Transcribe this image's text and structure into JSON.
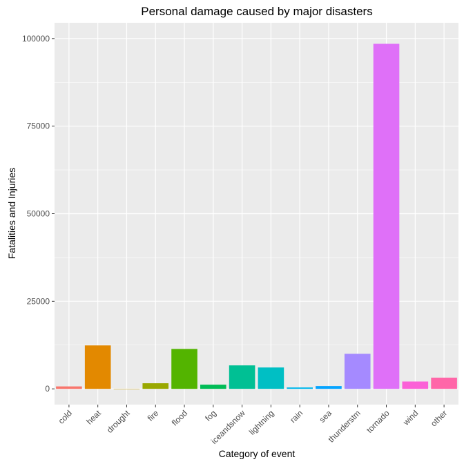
{
  "chart_data": {
    "type": "bar",
    "title": "Personal damage caused by major disasters",
    "xlabel": "Category of event",
    "ylabel": "Fatalities and Injuries",
    "categories": [
      "cold",
      "heat",
      "drought",
      "fire",
      "flood",
      "fog",
      "iceandsnow",
      "lightning",
      "rain",
      "sea",
      "thunderstm",
      "tornado",
      "wind",
      "other"
    ],
    "values": [
      700,
      12400,
      30,
      1600,
      11400,
      1200,
      6700,
      6100,
      400,
      800,
      10000,
      98500,
      2100,
      3200
    ],
    "colors": [
      "#F8766D",
      "#E38900",
      "#C49A00",
      "#99A800",
      "#53B400",
      "#00BC56",
      "#00C094",
      "#00BFC4",
      "#00B6EB",
      "#06A4FF",
      "#A58AFF",
      "#DF70F8",
      "#FB61D7",
      "#FF66A8"
    ],
    "ylim": [
      -4500,
      104500
    ],
    "yticks": [
      0,
      25000,
      50000,
      75000,
      100000
    ],
    "ytick_labels": [
      "0",
      "25000",
      "50000",
      "75000",
      "100000"
    ],
    "grid": true,
    "legend": "none",
    "panel_background": "#EBEBEB",
    "grid_color": "#FFFFFF"
  }
}
